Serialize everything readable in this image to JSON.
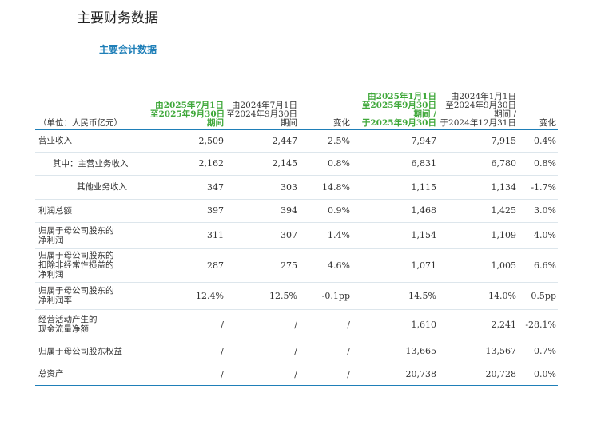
{
  "page_title": "主要财务数据",
  "section_title": "主要会计数据",
  "table": {
    "unit_label": "（单位：人民币亿元）",
    "headers": {
      "q3_2025": [
        "由2025年7月1日",
        "至2025年9月30日",
        "期间"
      ],
      "q3_2024": [
        "由2024年7月1日",
        "至2024年9月30日",
        "期间"
      ],
      "q3_change": "变化",
      "ytd_2025": [
        "由2025年1月1日",
        "至2025年9月30日",
        "期间 /",
        "于2025年9月30日"
      ],
      "ytd_2024": [
        "由2024年1月1日",
        "至2024年9月30日",
        "期间 /",
        "于2024年12月31日"
      ],
      "ytd_change": "变化"
    },
    "rows": [
      {
        "label": [
          "营业收入"
        ],
        "indent": 0,
        "values": [
          "2,509",
          "2,447",
          "2.5%",
          "7,947",
          "7,915",
          "0.4%"
        ]
      },
      {
        "label": [
          "其中：主营业务收入"
        ],
        "indent": 1,
        "values": [
          "2,162",
          "2,145",
          "0.8%",
          "6,831",
          "6,780",
          "0.8%"
        ]
      },
      {
        "label": [
          "其他业务收入"
        ],
        "indent": 2,
        "values": [
          "347",
          "303",
          "14.8%",
          "1,115",
          "1,134",
          "-1.7%"
        ]
      },
      {
        "label": [
          "利润总额"
        ],
        "indent": 0,
        "values": [
          "397",
          "394",
          "0.9%",
          "1,468",
          "1,425",
          "3.0%"
        ]
      },
      {
        "label": [
          "归属于母公司股东的",
          "净利润"
        ],
        "indent": 0,
        "values": [
          "311",
          "307",
          "1.4%",
          "1,154",
          "1,109",
          "4.0%"
        ]
      },
      {
        "label": [
          "归属于母公司股东的",
          "扣除非经常性损益的",
          "净利润"
        ],
        "indent": 0,
        "values": [
          "287",
          "275",
          "4.6%",
          "1,071",
          "1,005",
          "6.6%"
        ]
      },
      {
        "label": [
          "归属于母公司股东的",
          "净利润率"
        ],
        "indent": 0,
        "values": [
          "12.4%",
          "12.5%",
          "-0.1pp",
          "14.5%",
          "14.0%",
          "0.5pp"
        ]
      },
      {
        "label": [
          "经营活动产生的",
          "现金流量净额"
        ],
        "indent": 0,
        "values": [
          "/",
          "/",
          "/",
          "1,610",
          "2,241",
          "-28.1%"
        ]
      },
      {
        "label": [
          "归属于母公司股东权益"
        ],
        "indent": 0,
        "values": [
          "/",
          "/",
          "/",
          "13,665",
          "13,567",
          "0.7%"
        ]
      },
      {
        "label": [
          "总资产"
        ],
        "indent": 0,
        "values": [
          "/",
          "/",
          "/",
          "20,738",
          "20,728",
          "0.0%"
        ]
      }
    ]
  },
  "colors": {
    "accent_blue": "#1f7fb8",
    "highlight_green": "#3fa83a"
  }
}
